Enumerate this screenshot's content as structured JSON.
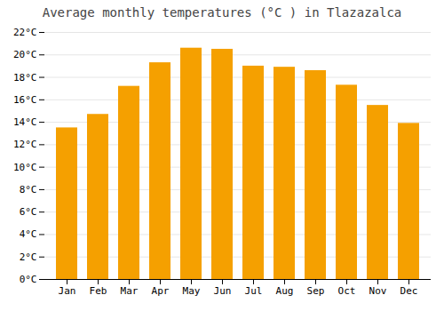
{
  "chart_data": {
    "type": "bar",
    "title": "Average monthly temperatures (°C ) in Tlazazalca",
    "categories": [
      "Jan",
      "Feb",
      "Mar",
      "Apr",
      "May",
      "Jun",
      "Jul",
      "Aug",
      "Sep",
      "Oct",
      "Nov",
      "Dec"
    ],
    "values": [
      13.5,
      14.7,
      17.2,
      19.3,
      20.6,
      20.5,
      19.0,
      18.9,
      18.6,
      17.3,
      15.5,
      13.9
    ],
    "color": "#F5A000",
    "ylim": [
      0,
      22
    ],
    "yticks": [
      {
        "value": 0,
        "label": "0°C"
      },
      {
        "value": 2,
        "label": "2°C"
      },
      {
        "value": 4,
        "label": "4°C"
      },
      {
        "value": 6,
        "label": "6°C"
      },
      {
        "value": 8,
        "label": "8°C"
      },
      {
        "value": 10,
        "label": "10°C"
      },
      {
        "value": 12,
        "label": "12°C"
      },
      {
        "value": 14,
        "label": "14°C"
      },
      {
        "value": 16,
        "label": "16°C"
      },
      {
        "value": 18,
        "label": "18°C"
      },
      {
        "value": 20,
        "label": "20°C"
      },
      {
        "value": 22,
        "label": "22°C"
      }
    ],
    "grid": true
  }
}
